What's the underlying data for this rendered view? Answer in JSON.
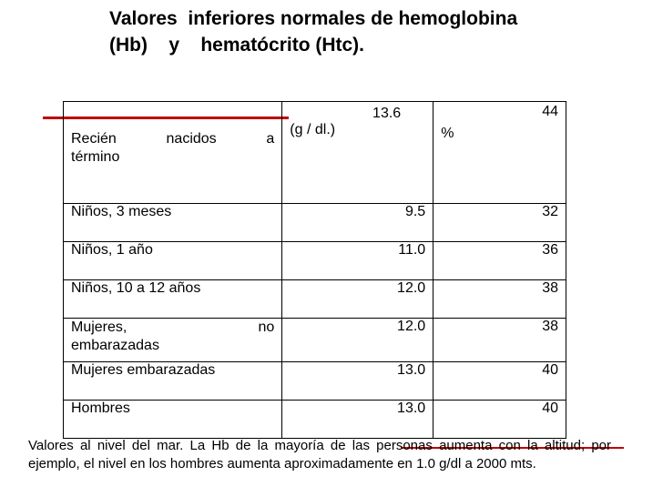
{
  "title": "Valores  inferiores normales de hemoglobina (Hb)    y    hematócrito (Htc).",
  "header_row": {
    "label": "Recién       nacidos      a término",
    "label_line1": "Recién nacidos a",
    "label_line2": "término",
    "hb_value": "13.6",
    "hb_unit": "(g / dl.)",
    "htc_value": "44",
    "htc_unit": "%"
  },
  "rows": [
    {
      "label": "Niños, 3 meses",
      "hb": "9.5",
      "htc": "32"
    },
    {
      "label": "Niños, 1 año",
      "hb": "11.0",
      "htc": "36"
    },
    {
      "label": "Niños, 10 a 12 años",
      "hb": "12.0",
      "htc": "38"
    },
    {
      "label_line1": "Mujeres, no",
      "label_line2": "embarazadas",
      "hb": "12.0",
      "htc": "38"
    },
    {
      "label": "Mujeres embarazadas",
      "hb": "13.0",
      "htc": "40"
    },
    {
      "label": "Hombres",
      "hb": "13.0",
      "htc": "40"
    }
  ],
  "footnote": "Valores al nivel del mar. La Hb de la mayoría de las personas aumenta con la altitud; por ejemplo, el nivel en los hombres aumenta aproximadamente en 1.0 g/dl a 2000 mts.",
  "colors": {
    "accent_line": "#c00000",
    "text": "#000000",
    "background": "#ffffff"
  }
}
